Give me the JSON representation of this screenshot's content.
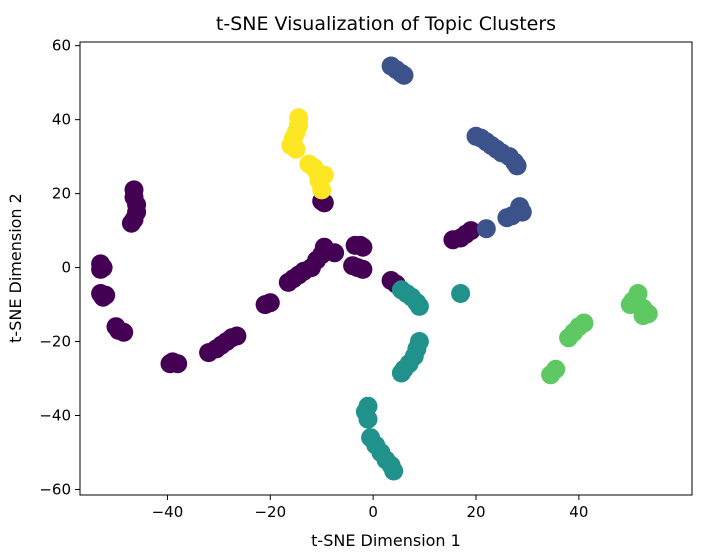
{
  "chart_data": {
    "type": "scatter",
    "title": "t-SNE Visualization of Topic Clusters",
    "xlabel": "t-SNE Dimension 1",
    "ylabel": "t-SNE Dimension 2",
    "xlim": [
      -57,
      62
    ],
    "ylim": [
      -61.5,
      61
    ],
    "xticks": [
      -40,
      -20,
      0,
      20,
      40
    ],
    "yticks": [
      -60,
      -40,
      -20,
      0,
      20,
      40,
      60
    ],
    "xtick_labels": [
      "−40",
      "−20",
      "0",
      "20",
      "40"
    ],
    "ytick_labels": [
      "−60",
      "−40",
      "−20",
      "0",
      "20",
      "40",
      "60"
    ],
    "grid": false,
    "legend": "none",
    "series": [
      {
        "color": "#440154",
        "points": [
          [
            -53,
            1
          ],
          [
            -52.5,
            0
          ],
          [
            -53,
            -0.5
          ],
          [
            -53,
            -7
          ],
          [
            -52.5,
            -8
          ],
          [
            -52,
            -7.5
          ],
          [
            -50,
            -16
          ],
          [
            -49.5,
            -17
          ],
          [
            -48.5,
            -17.5
          ],
          [
            -46.5,
            21
          ],
          [
            -46.5,
            19
          ],
          [
            -46,
            17
          ],
          [
            -46,
            15
          ],
          [
            -46.5,
            13
          ],
          [
            -47,
            12
          ],
          [
            -39.5,
            -26
          ],
          [
            -39,
            -25.5
          ],
          [
            -38,
            -26
          ],
          [
            -32,
            -23
          ],
          [
            -30.5,
            -22
          ],
          [
            -29.5,
            -21
          ],
          [
            -28.5,
            -20
          ],
          [
            -27.5,
            -19
          ],
          [
            -26.5,
            -18.5
          ],
          [
            -21,
            -10
          ],
          [
            -20,
            -9.5
          ],
          [
            -16.5,
            -4
          ],
          [
            -15.5,
            -3
          ],
          [
            -14.5,
            -2
          ],
          [
            -13.5,
            -1
          ],
          [
            -12,
            0
          ],
          [
            -11,
            2
          ],
          [
            -10,
            3.5
          ],
          [
            -9.5,
            5.5
          ],
          [
            -7.5,
            4
          ],
          [
            -10,
            18
          ],
          [
            -9.5,
            17.5
          ],
          [
            -4,
            0.5
          ],
          [
            -3,
            0
          ],
          [
            -2,
            -0.5
          ],
          [
            -3.5,
            6
          ],
          [
            -2.5,
            6
          ],
          [
            -2,
            5.5
          ],
          [
            3.5,
            -3.5
          ],
          [
            4.5,
            -4.5
          ],
          [
            15.5,
            7.5
          ],
          [
            17,
            8
          ],
          [
            18,
            9
          ],
          [
            19,
            10
          ]
        ]
      },
      {
        "color": "#3b528b",
        "points": [
          [
            3.5,
            54.5
          ],
          [
            4.5,
            53.5
          ],
          [
            5.5,
            52.5
          ],
          [
            6,
            52
          ],
          [
            20,
            35.5
          ],
          [
            21,
            35
          ],
          [
            22,
            34
          ],
          [
            23,
            33
          ],
          [
            24,
            32
          ],
          [
            25,
            31
          ],
          [
            26.5,
            30
          ],
          [
            27.5,
            28.5
          ],
          [
            28,
            27.5
          ],
          [
            28.5,
            16.5
          ],
          [
            29,
            15
          ],
          [
            27,
            14
          ],
          [
            26,
            13.5
          ],
          [
            22,
            10.5
          ]
        ]
      },
      {
        "color": "#21918c",
        "points": [
          [
            5.5,
            -6
          ],
          [
            6.5,
            -7
          ],
          [
            7.5,
            -8
          ],
          [
            8.5,
            -9.5
          ],
          [
            9,
            -10.5
          ],
          [
            17,
            -7
          ],
          [
            9,
            -20
          ],
          [
            8.5,
            -22
          ],
          [
            8,
            -24
          ],
          [
            7,
            -26
          ],
          [
            6,
            -27.5
          ],
          [
            5.5,
            -28.5
          ],
          [
            -1,
            -37.5
          ],
          [
            -1.5,
            -39
          ],
          [
            -1,
            -41
          ],
          [
            -0.5,
            -46
          ],
          [
            0.5,
            -48
          ],
          [
            1.5,
            -50
          ],
          [
            2.5,
            -52
          ],
          [
            3.5,
            -53.5
          ],
          [
            4,
            -55
          ]
        ]
      },
      {
        "color": "#5ec962",
        "points": [
          [
            51.5,
            -7
          ],
          [
            50.5,
            -9
          ],
          [
            50,
            -10
          ],
          [
            52.5,
            -11
          ],
          [
            53.5,
            -12.5
          ],
          [
            52.5,
            -13
          ],
          [
            41,
            -15
          ],
          [
            40,
            -16
          ],
          [
            39,
            -17.5
          ],
          [
            38,
            -19
          ],
          [
            35.5,
            -27.5
          ],
          [
            34.5,
            -29
          ]
        ]
      },
      {
        "color": "#fde725",
        "points": [
          [
            -14.5,
            40.5
          ],
          [
            -14.5,
            38.5
          ],
          [
            -15,
            36.5
          ],
          [
            -15.5,
            35
          ],
          [
            -16,
            33
          ],
          [
            -15,
            32
          ],
          [
            -12.5,
            28
          ],
          [
            -11.5,
            27
          ],
          [
            -11,
            26
          ],
          [
            -9.5,
            25
          ],
          [
            -10.5,
            23.5
          ],
          [
            -10,
            21
          ]
        ]
      }
    ]
  }
}
